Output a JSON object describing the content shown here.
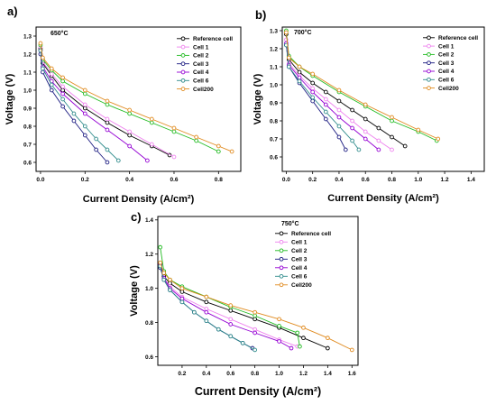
{
  "chart_data": [
    {
      "type": "line",
      "panel_label": "a)",
      "annotation": "650°C",
      "xlabel": "Current Density (A/cm²)",
      "ylabel": "Voltage (V)",
      "xlim": [
        -0.02,
        0.9
      ],
      "ylim": [
        0.55,
        1.35
      ],
      "xticks": [
        "0.0",
        "0.2",
        "0.4",
        "0.6",
        "0.8"
      ],
      "yticks": [
        "0.6",
        "0.7",
        "0.8",
        "0.9",
        "1.0",
        "1.1",
        "1.2",
        "1.3"
      ],
      "legend_position": "top-right",
      "series": [
        {
          "name": "Reference cell",
          "x": [
            0,
            0.01,
            0.05,
            0.1,
            0.2,
            0.3,
            0.4,
            0.5,
            0.58
          ],
          "y": [
            1.23,
            1.15,
            1.08,
            1.0,
            0.9,
            0.82,
            0.75,
            0.69,
            0.64
          ]
        },
        {
          "name": "Cell 1",
          "x": [
            0,
            0.01,
            0.05,
            0.1,
            0.2,
            0.3,
            0.4,
            0.5,
            0.6
          ],
          "y": [
            1.24,
            1.16,
            1.09,
            1.02,
            0.92,
            0.84,
            0.77,
            0.7,
            0.63
          ]
        },
        {
          "name": "Cell 2",
          "x": [
            0,
            0.01,
            0.05,
            0.1,
            0.2,
            0.3,
            0.4,
            0.5,
            0.6,
            0.7,
            0.8
          ],
          "y": [
            1.25,
            1.17,
            1.11,
            1.05,
            0.98,
            0.92,
            0.87,
            0.82,
            0.77,
            0.72,
            0.66
          ]
        },
        {
          "name": "Cell 3",
          "x": [
            0,
            0.01,
            0.05,
            0.1,
            0.15,
            0.2,
            0.25,
            0.3
          ],
          "y": [
            1.2,
            1.1,
            1.0,
            0.91,
            0.83,
            0.75,
            0.67,
            0.6
          ]
        },
        {
          "name": "Cell 4",
          "x": [
            0,
            0.01,
            0.05,
            0.1,
            0.2,
            0.3,
            0.4,
            0.48
          ],
          "y": [
            1.22,
            1.13,
            1.05,
            0.98,
            0.87,
            0.78,
            0.69,
            0.61
          ]
        },
        {
          "name": "Cell 6",
          "x": [
            0,
            0.01,
            0.05,
            0.1,
            0.15,
            0.2,
            0.25,
            0.3,
            0.35
          ],
          "y": [
            1.22,
            1.12,
            1.03,
            0.95,
            0.87,
            0.8,
            0.73,
            0.67,
            0.61
          ]
        },
        {
          "name": "Cell200",
          "x": [
            0,
            0.01,
            0.05,
            0.1,
            0.2,
            0.3,
            0.4,
            0.5,
            0.6,
            0.7,
            0.8,
            0.86
          ],
          "y": [
            1.26,
            1.18,
            1.12,
            1.07,
            1.0,
            0.94,
            0.89,
            0.84,
            0.79,
            0.74,
            0.69,
            0.66
          ]
        }
      ]
    },
    {
      "type": "line",
      "panel_label": "b)",
      "annotation": "700°C",
      "xlabel": "Current Density (A/cm²)",
      "ylabel": "Voltage (V)",
      "xlim": [
        -0.03,
        1.5
      ],
      "ylim": [
        0.52,
        1.32
      ],
      "xticks": [
        "0.0",
        "0.2",
        "0.4",
        "0.6",
        "0.8",
        "1.0",
        "1.2",
        "1.4"
      ],
      "yticks": [
        "0.6",
        "0.7",
        "0.8",
        "0.9",
        "1.0",
        "1.1",
        "1.2",
        "1.3"
      ],
      "legend_position": "top-right",
      "series": [
        {
          "name": "Reference cell",
          "x": [
            0,
            0.02,
            0.1,
            0.2,
            0.3,
            0.4,
            0.5,
            0.6,
            0.7,
            0.8,
            0.9
          ],
          "y": [
            1.28,
            1.14,
            1.07,
            1.01,
            0.96,
            0.91,
            0.86,
            0.81,
            0.76,
            0.71,
            0.66
          ]
        },
        {
          "name": "Cell 1",
          "x": [
            0,
            0.02,
            0.1,
            0.2,
            0.3,
            0.4,
            0.5,
            0.6,
            0.7,
            0.8
          ],
          "y": [
            1.25,
            1.12,
            1.05,
            0.98,
            0.92,
            0.86,
            0.8,
            0.74,
            0.69,
            0.64
          ]
        },
        {
          "name": "Cell 2",
          "x": [
            0,
            0.02,
            0.1,
            0.2,
            0.4,
            0.6,
            0.8,
            1.0,
            1.14
          ],
          "y": [
            1.3,
            1.16,
            1.1,
            1.05,
            0.96,
            0.88,
            0.8,
            0.74,
            0.69
          ]
        },
        {
          "name": "Cell 3",
          "x": [
            0,
            0.02,
            0.1,
            0.2,
            0.3,
            0.4,
            0.45
          ],
          "y": [
            1.22,
            1.1,
            1.01,
            0.91,
            0.81,
            0.71,
            0.64
          ]
        },
        {
          "name": "Cell 4",
          "x": [
            0,
            0.02,
            0.1,
            0.2,
            0.3,
            0.4,
            0.5,
            0.6,
            0.7
          ],
          "y": [
            1.23,
            1.11,
            1.04,
            0.96,
            0.89,
            0.82,
            0.76,
            0.7,
            0.64
          ]
        },
        {
          "name": "Cell 6",
          "x": [
            0,
            0.02,
            0.1,
            0.2,
            0.3,
            0.4,
            0.5,
            0.55
          ],
          "y": [
            1.22,
            1.1,
            1.02,
            0.93,
            0.85,
            0.77,
            0.69,
            0.64
          ]
        },
        {
          "name": "Cell200",
          "x": [
            0,
            0.02,
            0.1,
            0.2,
            0.4,
            0.6,
            0.8,
            1.0,
            1.15
          ],
          "y": [
            1.29,
            1.15,
            1.1,
            1.06,
            0.97,
            0.89,
            0.82,
            0.75,
            0.7
          ]
        }
      ]
    },
    {
      "type": "line",
      "panel_label": "c)",
      "annotation": "750°C",
      "xlabel": "Current Density (A/cm²)",
      "ylabel": "Voltage (V)",
      "xlim": [
        0,
        1.65
      ],
      "ylim": [
        0.55,
        1.42
      ],
      "xticks": [
        "0.2",
        "0.4",
        "0.6",
        "0.8",
        "1.0",
        "1.2",
        "1.4",
        "1.6"
      ],
      "yticks": [
        "0.6",
        "0.8",
        "1.0",
        "1.2",
        "1.4"
      ],
      "legend_position": "top-right",
      "series": [
        {
          "name": "Reference cell",
          "x": [
            0.02,
            0.05,
            0.1,
            0.2,
            0.4,
            0.6,
            0.8,
            1.0,
            1.2,
            1.4
          ],
          "y": [
            1.14,
            1.07,
            1.03,
            0.98,
            0.92,
            0.87,
            0.82,
            0.77,
            0.71,
            0.65
          ]
        },
        {
          "name": "Cell 1",
          "x": [
            0.02,
            0.05,
            0.1,
            0.2,
            0.4,
            0.6,
            0.8,
            1.0,
            1.15
          ],
          "y": [
            1.13,
            1.06,
            1.01,
            0.95,
            0.88,
            0.82,
            0.76,
            0.7,
            0.66
          ]
        },
        {
          "name": "Cell 2",
          "x": [
            0.02,
            0.05,
            0.1,
            0.2,
            0.4,
            0.6,
            0.8,
            1.0,
            1.15,
            1.17
          ],
          "y": [
            1.24,
            1.1,
            1.05,
            1.01,
            0.95,
            0.89,
            0.84,
            0.78,
            0.74,
            0.66
          ]
        },
        {
          "name": "Cell 3",
          "x": [
            0.02,
            0.05,
            0.1,
            0.2,
            0.3,
            0.4,
            0.5,
            0.6,
            0.7,
            0.78
          ],
          "y": [
            1.12,
            1.05,
            0.99,
            0.92,
            0.86,
            0.81,
            0.76,
            0.72,
            0.68,
            0.65
          ]
        },
        {
          "name": "Cell 4",
          "x": [
            0.02,
            0.05,
            0.1,
            0.2,
            0.4,
            0.6,
            0.8,
            1.0,
            1.1
          ],
          "y": [
            1.14,
            1.06,
            1.0,
            0.94,
            0.86,
            0.79,
            0.74,
            0.69,
            0.65
          ]
        },
        {
          "name": "Cell 6",
          "x": [
            0.02,
            0.05,
            0.1,
            0.2,
            0.3,
            0.4,
            0.5,
            0.6,
            0.7,
            0.8
          ],
          "y": [
            1.13,
            1.05,
            0.99,
            0.92,
            0.86,
            0.81,
            0.76,
            0.72,
            0.68,
            0.64
          ]
        },
        {
          "name": "Cell200",
          "x": [
            0.02,
            0.05,
            0.1,
            0.2,
            0.4,
            0.6,
            0.8,
            1.0,
            1.2,
            1.4,
            1.6
          ],
          "y": [
            1.15,
            1.09,
            1.05,
            1.0,
            0.95,
            0.9,
            0.86,
            0.82,
            0.77,
            0.71,
            0.64
          ]
        }
      ]
    }
  ],
  "series_colors": {
    "Reference cell": "#000000",
    "Cell 1": "#ee82ee",
    "Cell 2": "#22bb22",
    "Cell 3": "#1a1a80",
    "Cell 4": "#9400d3",
    "Cell 6": "#2e8b8b",
    "Cell200": "#e08a1e"
  }
}
